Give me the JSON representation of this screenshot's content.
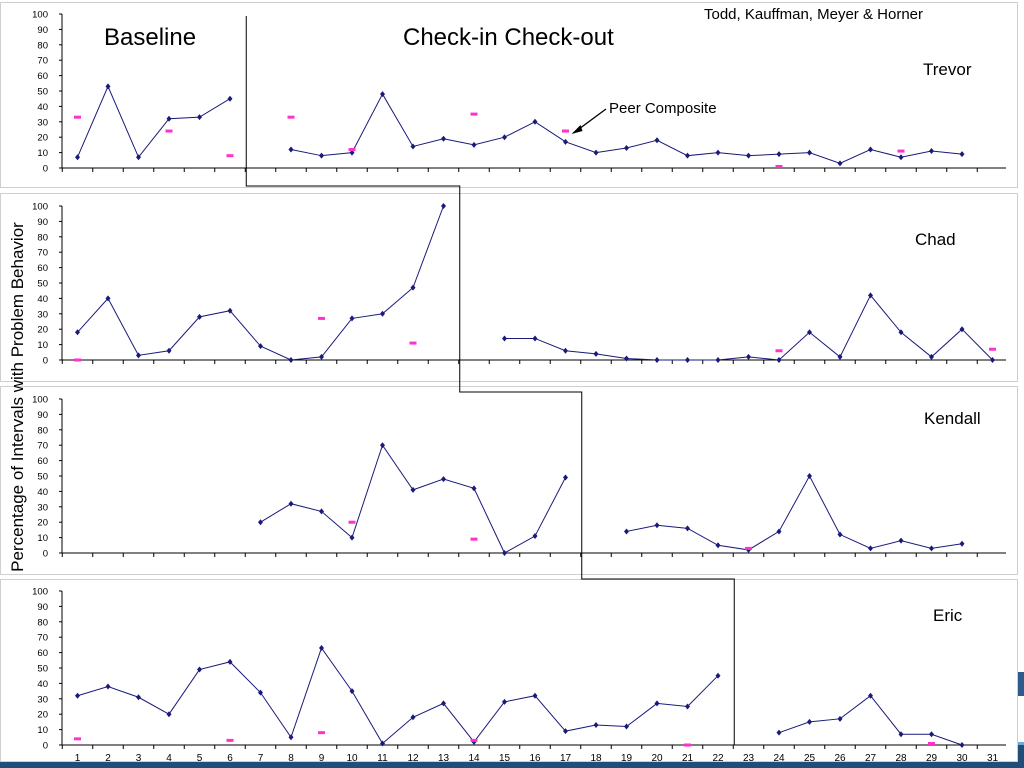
{
  "colors": {
    "data_line": "#1a1a7a",
    "peer_marker": "#ff33cc",
    "phase_line": "#000000",
    "banner": "#2e5c8a"
  },
  "chart_data": {
    "type": "line",
    "title": "",
    "authors": "Todd, Kauffman, Meyer & Horner",
    "ylabel": "Percentage of Intervals with Problem Behavior",
    "xlabel": "",
    "x_ticks": [
      1,
      2,
      3,
      4,
      5,
      6,
      7,
      8,
      9,
      10,
      11,
      12,
      13,
      14,
      15,
      16,
      17,
      18,
      19,
      20,
      21,
      22,
      23,
      24,
      25,
      26,
      27,
      28,
      29,
      30,
      31
    ],
    "y_ticks": [
      0,
      10,
      20,
      30,
      40,
      50,
      60,
      70,
      80,
      90,
      100
    ],
    "ylim": [
      0,
      100
    ],
    "xlim": [
      1,
      31
    ],
    "phases": [
      "Baseline",
      "Check-in Check-out"
    ],
    "annotation": "Peer Composite",
    "panels": [
      {
        "name": "Trevor",
        "phase_change_after": 6.5,
        "student": [
          [
            1,
            7
          ],
          [
            2,
            53
          ],
          [
            3,
            7
          ],
          [
            4,
            32
          ],
          [
            5,
            33
          ],
          [
            6,
            45
          ],
          [
            8,
            12
          ],
          [
            9,
            8
          ],
          [
            10,
            10
          ],
          [
            11,
            48
          ],
          [
            12,
            14
          ],
          [
            13,
            19
          ],
          [
            14,
            15
          ],
          [
            15,
            20
          ],
          [
            16,
            30
          ],
          [
            17,
            17
          ],
          [
            18,
            10
          ],
          [
            19,
            13
          ],
          [
            20,
            18
          ],
          [
            21,
            8
          ],
          [
            22,
            10
          ],
          [
            23,
            8
          ],
          [
            24,
            9
          ],
          [
            25,
            10
          ],
          [
            26,
            3
          ],
          [
            27,
            12
          ],
          [
            28,
            7
          ],
          [
            29,
            11
          ],
          [
            30,
            9
          ]
        ],
        "student_breaks": [
          7
        ],
        "peer": [
          [
            1,
            33
          ],
          [
            4,
            24
          ],
          [
            6,
            8
          ],
          [
            8,
            33
          ],
          [
            10,
            12
          ],
          [
            14,
            35
          ],
          [
            17,
            24
          ],
          [
            24,
            1
          ],
          [
            28,
            11
          ]
        ]
      },
      {
        "name": "Chad",
        "phase_change_after": 13.5,
        "student": [
          [
            1,
            18
          ],
          [
            2,
            40
          ],
          [
            3,
            3
          ],
          [
            4,
            6
          ],
          [
            5,
            28
          ],
          [
            6,
            32
          ],
          [
            7,
            9
          ],
          [
            8,
            0
          ],
          [
            9,
            2
          ],
          [
            10,
            27
          ],
          [
            11,
            30
          ],
          [
            12,
            47
          ],
          [
            13,
            100
          ],
          [
            15,
            14
          ],
          [
            16,
            14
          ],
          [
            17,
            6
          ],
          [
            18,
            4
          ],
          [
            19,
            1
          ],
          [
            20,
            0
          ],
          [
            21,
            0
          ],
          [
            22,
            0
          ],
          [
            23,
            2
          ],
          [
            24,
            0
          ],
          [
            25,
            18
          ],
          [
            26,
            2
          ],
          [
            27,
            42
          ],
          [
            28,
            18
          ],
          [
            29,
            2
          ],
          [
            30,
            20
          ],
          [
            31,
            0
          ]
        ],
        "student_breaks": [
          14
        ],
        "peer": [
          [
            1,
            0
          ],
          [
            9,
            27
          ],
          [
            12,
            11
          ],
          [
            24,
            6
          ],
          [
            31,
            7
          ]
        ]
      },
      {
        "name": "Kendall",
        "phase_change_after": 17.5,
        "student": [
          [
            7,
            20
          ],
          [
            8,
            32
          ],
          [
            9,
            27
          ],
          [
            10,
            10
          ],
          [
            11,
            70
          ],
          [
            12,
            41
          ],
          [
            13,
            48
          ],
          [
            14,
            42
          ],
          [
            15,
            0
          ],
          [
            16,
            11
          ],
          [
            17,
            49
          ],
          [
            19,
            14
          ],
          [
            20,
            18
          ],
          [
            21,
            16
          ],
          [
            22,
            5
          ],
          [
            23,
            2
          ],
          [
            24,
            14
          ],
          [
            25,
            50
          ],
          [
            26,
            12
          ],
          [
            27,
            3
          ],
          [
            28,
            8
          ],
          [
            29,
            3
          ],
          [
            30,
            6
          ]
        ],
        "student_breaks": [
          18
        ],
        "peer": [
          [
            10,
            20
          ],
          [
            14,
            9
          ],
          [
            23,
            3
          ]
        ]
      },
      {
        "name": "Eric",
        "phase_change_after": 22.5,
        "student": [
          [
            1,
            32
          ],
          [
            2,
            38
          ],
          [
            3,
            31
          ],
          [
            4,
            20
          ],
          [
            5,
            49
          ],
          [
            6,
            54
          ],
          [
            7,
            34
          ],
          [
            8,
            5
          ],
          [
            9,
            63
          ],
          [
            10,
            35
          ],
          [
            11,
            1
          ],
          [
            12,
            18
          ],
          [
            13,
            27
          ],
          [
            14,
            2
          ],
          [
            15,
            28
          ],
          [
            16,
            32
          ],
          [
            17,
            9
          ],
          [
            18,
            13
          ],
          [
            19,
            12
          ],
          [
            20,
            27
          ],
          [
            21,
            25
          ],
          [
            22,
            45
          ],
          [
            24,
            8
          ],
          [
            25,
            15
          ],
          [
            26,
            17
          ],
          [
            27,
            32
          ],
          [
            28,
            7
          ],
          [
            29,
            7
          ],
          [
            30,
            0
          ]
        ],
        "student_breaks": [
          23
        ],
        "peer": [
          [
            1,
            4
          ],
          [
            6,
            3
          ],
          [
            9,
            8
          ],
          [
            14,
            3
          ],
          [
            21,
            0
          ],
          [
            29,
            1
          ]
        ]
      }
    ]
  }
}
